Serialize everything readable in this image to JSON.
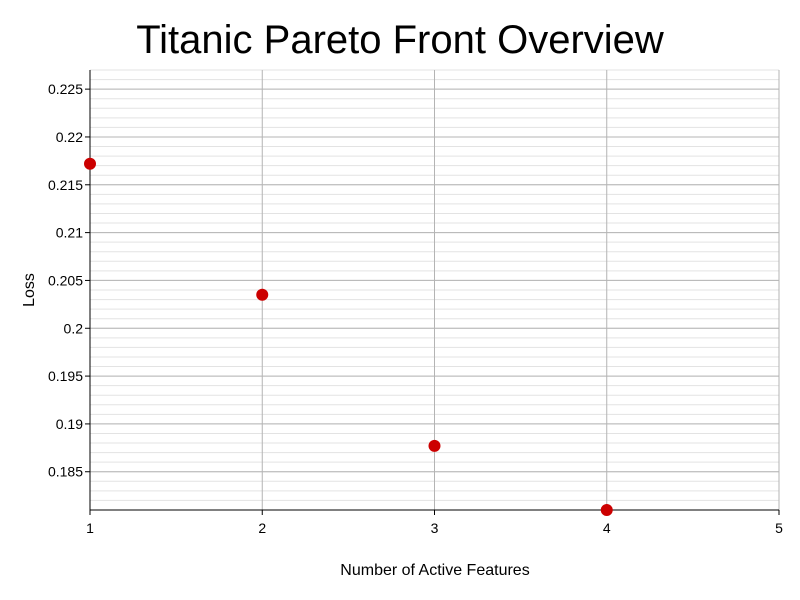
{
  "chart_data": {
    "type": "scatter",
    "title": "Titanic Pareto Front Overview",
    "xlabel": "Number of Active Features",
    "ylabel": "Loss",
    "xlim": [
      1,
      5
    ],
    "ylim": [
      0.181,
      0.227
    ],
    "x_ticks": [
      1,
      2,
      3,
      4,
      5
    ],
    "x_tick_labels": [
      "1",
      "2",
      "3",
      "4",
      "5"
    ],
    "y_ticks": [
      0.185,
      0.19,
      0.195,
      0.2,
      0.205,
      0.21,
      0.215,
      0.22,
      0.225
    ],
    "y_tick_labels": [
      "0.185",
      "0.19",
      "0.195",
      "0.2",
      "0.205",
      "0.21",
      "0.215",
      "0.22",
      "0.225"
    ],
    "grid": true,
    "minor_grid": true,
    "marker_color": "#cc0000",
    "points": [
      {
        "x": 1,
        "y": 0.2172
      },
      {
        "x": 2,
        "y": 0.2035
      },
      {
        "x": 3,
        "y": 0.1877
      },
      {
        "x": 4,
        "y": 0.181
      }
    ]
  }
}
